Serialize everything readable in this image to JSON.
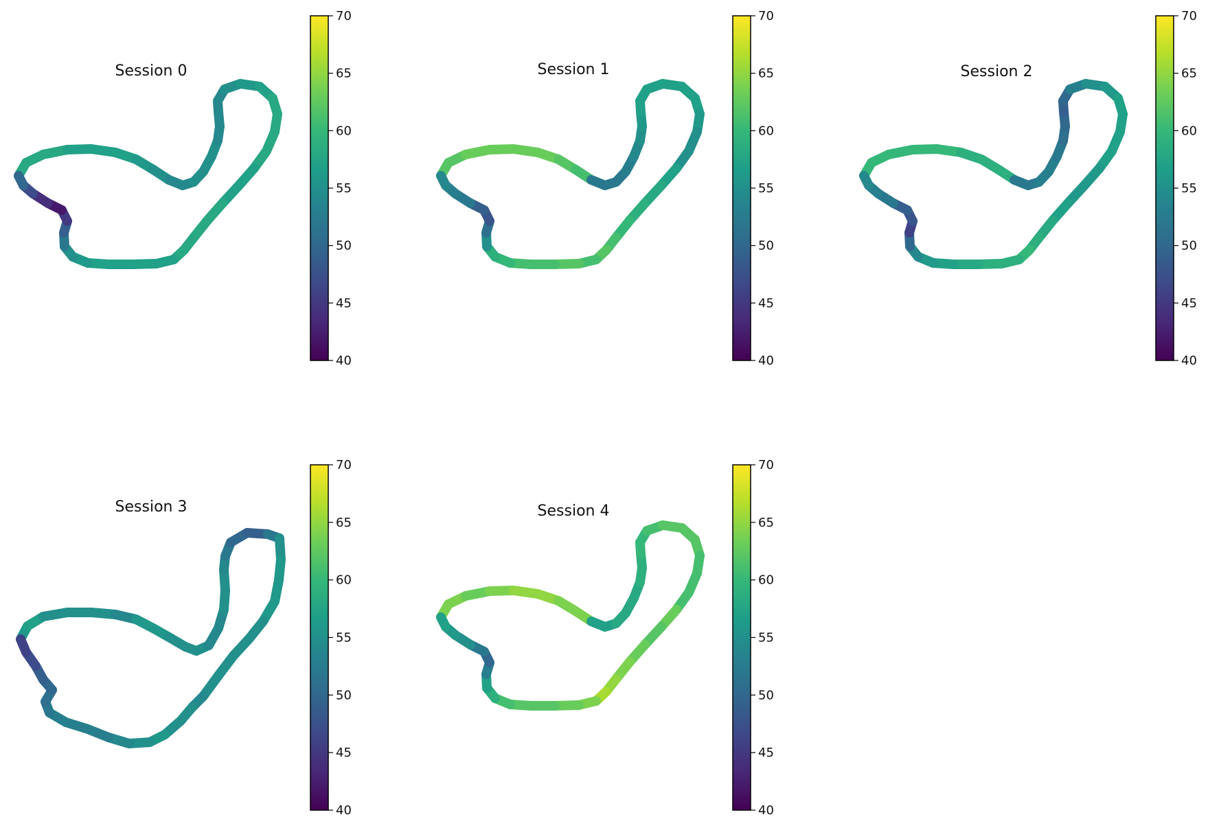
{
  "figure": {
    "panel_titles": [
      "Session 0",
      "Session 1",
      "Session 2",
      "Session 3",
      "Session 4"
    ]
  },
  "chart_data": [
    {
      "type": "scatter",
      "title": "Session 0",
      "xlabel": "",
      "ylabel": "",
      "axes_visible": false,
      "colormap": "viridis",
      "colorbar": {
        "vmin": 40,
        "vmax": 70,
        "ticks": [
          40,
          45,
          50,
          55,
          60,
          65,
          70
        ]
      },
      "track_color_values": [
        58,
        58,
        58,
        57,
        57,
        57,
        56,
        55,
        54,
        54,
        55,
        55,
        55,
        54,
        54,
        54,
        54,
        55,
        56,
        57,
        58,
        58,
        58,
        58,
        57,
        57,
        58,
        58,
        58,
        58,
        57,
        57,
        57,
        57,
        56,
        55,
        52,
        49,
        45,
        42,
        44,
        47,
        50,
        51
      ]
    },
    {
      "type": "scatter",
      "title": "Session 1",
      "xlabel": "",
      "ylabel": "",
      "axes_visible": false,
      "colormap": "viridis",
      "colorbar": {
        "vmin": 40,
        "vmax": 70,
        "ticks": [
          40,
          45,
          50,
          55,
          60,
          65,
          70
        ]
      },
      "track_color_values": [
        62,
        62,
        63,
        63,
        63,
        63,
        62,
        61,
        52,
        52,
        52,
        53,
        54,
        55,
        56,
        57,
        57,
        57,
        57,
        57,
        57,
        56,
        55,
        55,
        57,
        58,
        59,
        60,
        61,
        62,
        61,
        62,
        61,
        61,
        60,
        59,
        55,
        51,
        48,
        49,
        52,
        53,
        54,
        55
      ]
    },
    {
      "type": "scatter",
      "title": "Session 2",
      "xlabel": "",
      "ylabel": "",
      "axes_visible": false,
      "colormap": "viridis",
      "colorbar": {
        "vmin": 40,
        "vmax": 70,
        "ticks": [
          40,
          45,
          50,
          55,
          60,
          65,
          70
        ]
      },
      "track_color_values": [
        60,
        60,
        60,
        60,
        60,
        59,
        59,
        59,
        52,
        52,
        53,
        53,
        52,
        51,
        50,
        49,
        50,
        53,
        55,
        56,
        57,
        57,
        57,
        57,
        56,
        56,
        57,
        58,
        59,
        60,
        59,
        59,
        58,
        57,
        56,
        54,
        50,
        46,
        48,
        49,
        52,
        53,
        54,
        55
      ]
    },
    {
      "type": "scatter",
      "title": "Session 3",
      "xlabel": "",
      "ylabel": "",
      "axes_visible": false,
      "colormap": "viridis",
      "colorbar": {
        "vmin": 40,
        "vmax": 70,
        "ticks": [
          40,
          45,
          50,
          55,
          60,
          65,
          70
        ]
      },
      "track_color_values": [
        56,
        57,
        55,
        55,
        55,
        54,
        56,
        56,
        55,
        55,
        55,
        54,
        54,
        55,
        55,
        54,
        52,
        50,
        49,
        52,
        55,
        56,
        56,
        56,
        55,
        55,
        55,
        55,
        54,
        55,
        55,
        56,
        55,
        54,
        53,
        53,
        53,
        52,
        51,
        50,
        49,
        47,
        46,
        48
      ]
    },
    {
      "type": "scatter",
      "title": "Session 4",
      "xlabel": "",
      "ylabel": "",
      "axes_visible": false,
      "colormap": "viridis",
      "colorbar": {
        "vmin": 40,
        "vmax": 70,
        "ticks": [
          40,
          45,
          50,
          55,
          60,
          65,
          70
        ]
      },
      "track_color_values": [
        64,
        64,
        63,
        64,
        65,
        65,
        64,
        64,
        57,
        57,
        58,
        58,
        58,
        59,
        59,
        60,
        60,
        61,
        62,
        62,
        62,
        61,
        61,
        61,
        63,
        62,
        63,
        64,
        65,
        66,
        64,
        63,
        62,
        62,
        61,
        59,
        57,
        53,
        50,
        52,
        55,
        56,
        57,
        59
      ]
    }
  ],
  "colors": {
    "viridis_stops": [
      "#440154",
      "#482878",
      "#3e4989",
      "#31688e",
      "#26828e",
      "#1f9e89",
      "#35b779",
      "#6ece58",
      "#b5de2b",
      "#fde725"
    ]
  }
}
